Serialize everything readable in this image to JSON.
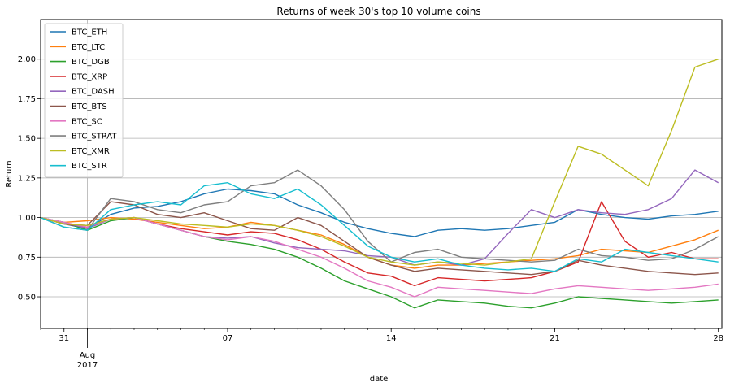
{
  "chart_data": {
    "type": "line",
    "title": "Returns of week 30's top 10 volume coins",
    "xlabel": "date",
    "ylabel": "Return",
    "xlim": [
      "2017-07-30",
      "2017-08-28"
    ],
    "ylim": [
      0.3,
      2.25
    ],
    "grid": true,
    "legend_position": "top-left",
    "y_ticks": [
      0.5,
      0.75,
      1.0,
      1.25,
      1.5,
      1.75,
      2.0
    ],
    "y_tick_labels": [
      "0.50",
      "0.75",
      "1.00",
      "1.25",
      "1.50",
      "1.75",
      "2.00"
    ],
    "x_ticks": [
      {
        "date": "2017-07-31",
        "label": "31"
      },
      {
        "date": "2017-08-01",
        "label": "Aug",
        "sublabel": "2017"
      },
      {
        "date": "2017-08-07",
        "label": "07"
      },
      {
        "date": "2017-08-14",
        "label": "14"
      },
      {
        "date": "2017-08-21",
        "label": "21"
      },
      {
        "date": "2017-08-28",
        "label": "28"
      }
    ],
    "series": [
      {
        "name": "BTC_ETH",
        "color": "#1f77b4",
        "x": [
          "2017-07-30",
          "2017-07-31",
          "2017-08-01",
          "2017-08-02",
          "2017-08-03",
          "2017-08-04",
          "2017-08-05",
          "2017-08-06",
          "2017-08-07",
          "2017-08-08",
          "2017-08-09",
          "2017-08-10",
          "2017-08-11",
          "2017-08-12",
          "2017-08-13",
          "2017-08-14",
          "2017-08-15",
          "2017-08-16",
          "2017-08-17",
          "2017-08-18",
          "2017-08-19",
          "2017-08-20",
          "2017-08-21",
          "2017-08-22",
          "2017-08-23",
          "2017-08-24",
          "2017-08-25",
          "2017-08-26",
          "2017-08-27",
          "2017-08-28"
        ],
        "values": [
          1.0,
          0.96,
          0.93,
          1.02,
          1.06,
          1.07,
          1.1,
          1.15,
          1.18,
          1.17,
          1.15,
          1.08,
          1.03,
          0.97,
          0.93,
          0.9,
          0.88,
          0.92,
          0.93,
          0.92,
          0.93,
          0.95,
          0.97,
          1.05,
          1.02,
          1.0,
          0.99,
          1.01,
          1.02,
          1.04
        ]
      },
      {
        "name": "BTC_LTC",
        "color": "#ff7f0e",
        "x": [
          "2017-07-30",
          "2017-07-31",
          "2017-08-01",
          "2017-08-02",
          "2017-08-03",
          "2017-08-04",
          "2017-08-05",
          "2017-08-06",
          "2017-08-07",
          "2017-08-08",
          "2017-08-09",
          "2017-08-10",
          "2017-08-11",
          "2017-08-12",
          "2017-08-13",
          "2017-08-14",
          "2017-08-15",
          "2017-08-16",
          "2017-08-17",
          "2017-08-18",
          "2017-08-19",
          "2017-08-20",
          "2017-08-21",
          "2017-08-22",
          "2017-08-23",
          "2017-08-24",
          "2017-08-25",
          "2017-08-26",
          "2017-08-27",
          "2017-08-28"
        ],
        "values": [
          1.0,
          0.97,
          0.98,
          1.0,
          0.99,
          0.97,
          0.95,
          0.93,
          0.94,
          0.97,
          0.95,
          0.92,
          0.89,
          0.83,
          0.75,
          0.7,
          0.68,
          0.7,
          0.7,
          0.71,
          0.72,
          0.73,
          0.74,
          0.76,
          0.8,
          0.79,
          0.78,
          0.82,
          0.86,
          0.92
        ]
      },
      {
        "name": "BTC_DGB",
        "color": "#2ca02c",
        "x": [
          "2017-07-30",
          "2017-07-31",
          "2017-08-01",
          "2017-08-02",
          "2017-08-03",
          "2017-08-04",
          "2017-08-05",
          "2017-08-06",
          "2017-08-07",
          "2017-08-08",
          "2017-08-09",
          "2017-08-10",
          "2017-08-11",
          "2017-08-12",
          "2017-08-13",
          "2017-08-14",
          "2017-08-15",
          "2017-08-16",
          "2017-08-17",
          "2017-08-18",
          "2017-08-19",
          "2017-08-20",
          "2017-08-21",
          "2017-08-22",
          "2017-08-23",
          "2017-08-24",
          "2017-08-25",
          "2017-08-26",
          "2017-08-27",
          "2017-08-28"
        ],
        "values": [
          1.0,
          0.97,
          0.92,
          0.98,
          1.0,
          0.96,
          0.92,
          0.88,
          0.85,
          0.83,
          0.8,
          0.75,
          0.68,
          0.6,
          0.55,
          0.5,
          0.43,
          0.48,
          0.47,
          0.46,
          0.44,
          0.43,
          0.46,
          0.5,
          0.49,
          0.48,
          0.47,
          0.46,
          0.47,
          0.48
        ]
      },
      {
        "name": "BTC_XRP",
        "color": "#d62728",
        "x": [
          "2017-07-30",
          "2017-07-31",
          "2017-08-01",
          "2017-08-02",
          "2017-08-03",
          "2017-08-04",
          "2017-08-05",
          "2017-08-06",
          "2017-08-07",
          "2017-08-08",
          "2017-08-09",
          "2017-08-10",
          "2017-08-11",
          "2017-08-12",
          "2017-08-13",
          "2017-08-14",
          "2017-08-15",
          "2017-08-16",
          "2017-08-17",
          "2017-08-18",
          "2017-08-19",
          "2017-08-20",
          "2017-08-21",
          "2017-08-22",
          "2017-08-23",
          "2017-08-24",
          "2017-08-25",
          "2017-08-26",
          "2017-08-27",
          "2017-08-28"
        ],
        "values": [
          1.0,
          0.96,
          0.94,
          0.99,
          1.0,
          0.96,
          0.93,
          0.91,
          0.89,
          0.91,
          0.9,
          0.86,
          0.8,
          0.72,
          0.65,
          0.63,
          0.57,
          0.62,
          0.61,
          0.6,
          0.61,
          0.62,
          0.66,
          0.72,
          1.1,
          0.85,
          0.75,
          0.78,
          0.74,
          0.74
        ]
      },
      {
        "name": "BTC_DASH",
        "color": "#9467bd",
        "x": [
          "2017-07-30",
          "2017-07-31",
          "2017-08-01",
          "2017-08-02",
          "2017-08-03",
          "2017-08-04",
          "2017-08-05",
          "2017-08-06",
          "2017-08-07",
          "2017-08-08",
          "2017-08-09",
          "2017-08-10",
          "2017-08-11",
          "2017-08-12",
          "2017-08-13",
          "2017-08-14",
          "2017-08-15",
          "2017-08-16",
          "2017-08-17",
          "2017-08-18",
          "2017-08-19",
          "2017-08-20",
          "2017-08-21",
          "2017-08-22",
          "2017-08-23",
          "2017-08-24",
          "2017-08-25",
          "2017-08-26",
          "2017-08-27",
          "2017-08-28"
        ],
        "values": [
          1.0,
          0.97,
          0.93,
          0.99,
          1.0,
          0.96,
          0.92,
          0.88,
          0.87,
          0.88,
          0.84,
          0.81,
          0.8,
          0.79,
          0.76,
          0.75,
          0.7,
          0.72,
          0.7,
          0.74,
          0.9,
          1.05,
          1.0,
          1.05,
          1.03,
          1.02,
          1.05,
          1.12,
          1.3,
          1.22
        ]
      },
      {
        "name": "BTC_BTS",
        "color": "#8c564b",
        "x": [
          "2017-07-30",
          "2017-07-31",
          "2017-08-01",
          "2017-08-02",
          "2017-08-03",
          "2017-08-04",
          "2017-08-05",
          "2017-08-06",
          "2017-08-07",
          "2017-08-08",
          "2017-08-09",
          "2017-08-10",
          "2017-08-11",
          "2017-08-12",
          "2017-08-13",
          "2017-08-14",
          "2017-08-15",
          "2017-08-16",
          "2017-08-17",
          "2017-08-18",
          "2017-08-19",
          "2017-08-20",
          "2017-08-21",
          "2017-08-22",
          "2017-08-23",
          "2017-08-24",
          "2017-08-25",
          "2017-08-26",
          "2017-08-27",
          "2017-08-28"
        ],
        "values": [
          1.0,
          0.96,
          0.95,
          1.1,
          1.08,
          1.02,
          1.0,
          1.03,
          0.98,
          0.93,
          0.92,
          1.0,
          0.95,
          0.85,
          0.75,
          0.7,
          0.66,
          0.68,
          0.67,
          0.66,
          0.65,
          0.64,
          0.66,
          0.73,
          0.7,
          0.68,
          0.66,
          0.65,
          0.64,
          0.65
        ]
      },
      {
        "name": "BTC_SC",
        "color": "#e377c2",
        "x": [
          "2017-07-30",
          "2017-07-31",
          "2017-08-01",
          "2017-08-02",
          "2017-08-03",
          "2017-08-04",
          "2017-08-05",
          "2017-08-06",
          "2017-08-07",
          "2017-08-08",
          "2017-08-09",
          "2017-08-10",
          "2017-08-11",
          "2017-08-12",
          "2017-08-13",
          "2017-08-14",
          "2017-08-15",
          "2017-08-16",
          "2017-08-17",
          "2017-08-18",
          "2017-08-19",
          "2017-08-20",
          "2017-08-21",
          "2017-08-22",
          "2017-08-23",
          "2017-08-24",
          "2017-08-25",
          "2017-08-26",
          "2017-08-27",
          "2017-08-28"
        ],
        "values": [
          1.0,
          0.97,
          0.94,
          0.99,
          1.0,
          0.96,
          0.92,
          0.88,
          0.86,
          0.88,
          0.85,
          0.8,
          0.75,
          0.68,
          0.6,
          0.56,
          0.5,
          0.56,
          0.55,
          0.54,
          0.53,
          0.52,
          0.55,
          0.57,
          0.56,
          0.55,
          0.54,
          0.55,
          0.56,
          0.58
        ]
      },
      {
        "name": "BTC_STRAT",
        "color": "#7f7f7f",
        "x": [
          "2017-07-30",
          "2017-07-31",
          "2017-08-01",
          "2017-08-02",
          "2017-08-03",
          "2017-08-04",
          "2017-08-05",
          "2017-08-06",
          "2017-08-07",
          "2017-08-08",
          "2017-08-09",
          "2017-08-10",
          "2017-08-11",
          "2017-08-12",
          "2017-08-13",
          "2017-08-14",
          "2017-08-15",
          "2017-08-16",
          "2017-08-17",
          "2017-08-18",
          "2017-08-19",
          "2017-08-20",
          "2017-08-21",
          "2017-08-22",
          "2017-08-23",
          "2017-08-24",
          "2017-08-25",
          "2017-08-26",
          "2017-08-27",
          "2017-08-28"
        ],
        "values": [
          1.0,
          0.94,
          0.92,
          1.12,
          1.1,
          1.05,
          1.03,
          1.08,
          1.1,
          1.2,
          1.22,
          1.3,
          1.2,
          1.05,
          0.85,
          0.72,
          0.78,
          0.8,
          0.75,
          0.74,
          0.73,
          0.72,
          0.73,
          0.8,
          0.76,
          0.75,
          0.73,
          0.74,
          0.8,
          0.88
        ]
      },
      {
        "name": "BTC_XMR",
        "color": "#bcbd22",
        "x": [
          "2017-07-30",
          "2017-07-31",
          "2017-08-01",
          "2017-08-02",
          "2017-08-03",
          "2017-08-04",
          "2017-08-05",
          "2017-08-06",
          "2017-08-07",
          "2017-08-08",
          "2017-08-09",
          "2017-08-10",
          "2017-08-11",
          "2017-08-12",
          "2017-08-13",
          "2017-08-14",
          "2017-08-15",
          "2017-08-16",
          "2017-08-17",
          "2017-08-18",
          "2017-08-19",
          "2017-08-20",
          "2017-08-21",
          "2017-08-22",
          "2017-08-23",
          "2017-08-24",
          "2017-08-25",
          "2017-08-26",
          "2017-08-27",
          "2017-08-28"
        ],
        "values": [
          1.0,
          0.96,
          0.95,
          0.99,
          1.0,
          0.98,
          0.96,
          0.95,
          0.94,
          0.96,
          0.95,
          0.92,
          0.88,
          0.82,
          0.75,
          0.72,
          0.7,
          0.72,
          0.71,
          0.7,
          0.72,
          0.74,
          1.1,
          1.45,
          1.4,
          1.3,
          1.2,
          1.55,
          1.95,
          2.0
        ]
      },
      {
        "name": "BTC_STR",
        "color": "#17becf",
        "x": [
          "2017-07-30",
          "2017-07-31",
          "2017-08-01",
          "2017-08-02",
          "2017-08-03",
          "2017-08-04",
          "2017-08-05",
          "2017-08-06",
          "2017-08-07",
          "2017-08-08",
          "2017-08-09",
          "2017-08-10",
          "2017-08-11",
          "2017-08-12",
          "2017-08-13",
          "2017-08-14",
          "2017-08-15",
          "2017-08-16",
          "2017-08-17",
          "2017-08-18",
          "2017-08-19",
          "2017-08-20",
          "2017-08-21",
          "2017-08-22",
          "2017-08-23",
          "2017-08-24",
          "2017-08-25",
          "2017-08-26",
          "2017-08-27",
          "2017-08-28"
        ],
        "values": [
          1.0,
          0.94,
          0.92,
          1.05,
          1.08,
          1.1,
          1.08,
          1.2,
          1.22,
          1.15,
          1.12,
          1.18,
          1.08,
          0.95,
          0.82,
          0.75,
          0.72,
          0.74,
          0.7,
          0.68,
          0.67,
          0.68,
          0.66,
          0.74,
          0.72,
          0.8,
          0.78,
          0.76,
          0.74,
          0.72
        ]
      }
    ]
  }
}
